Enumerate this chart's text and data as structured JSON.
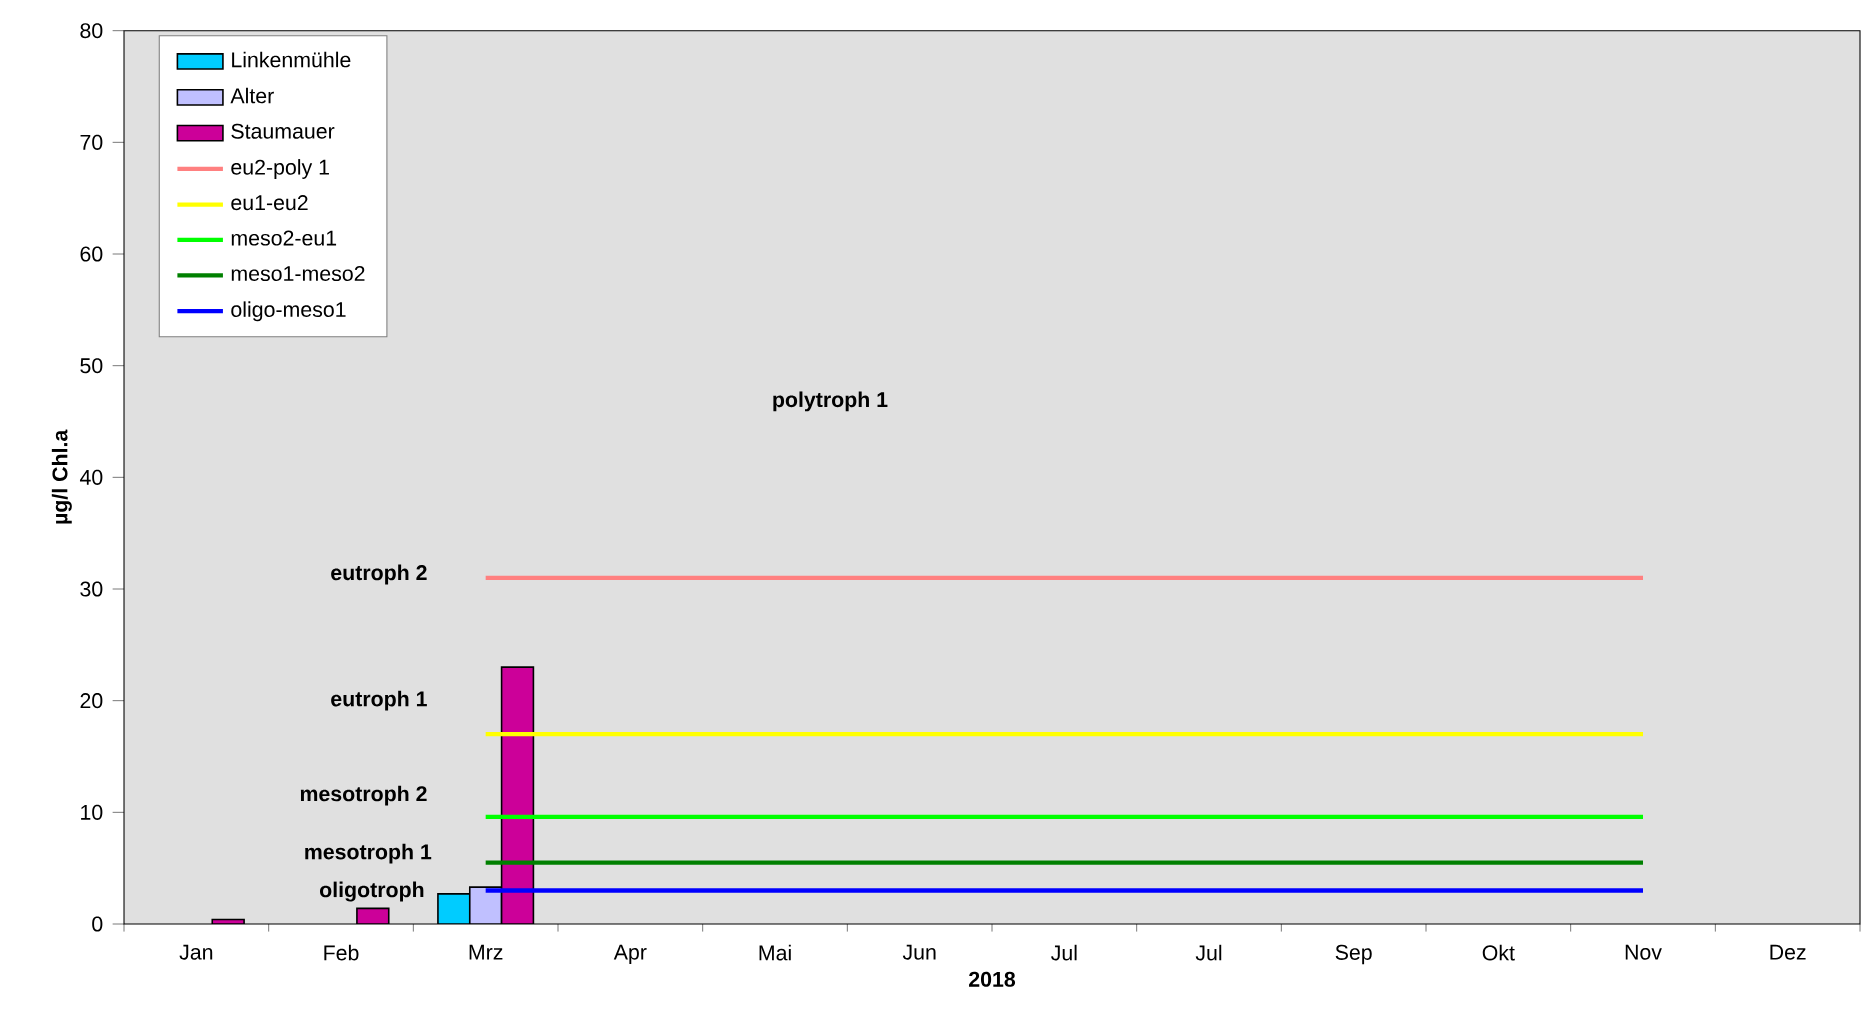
{
  "chart_data": {
    "type": "bar",
    "xlabel": "2018",
    "ylabel": "µg/l Chl.a",
    "categories": [
      "Jan",
      "Feb",
      "Mrz",
      "Apr",
      "Mai",
      "Jun",
      "Jul",
      "Jul",
      "Sep",
      "Okt",
      "Nov",
      "Dez"
    ],
    "series": [
      {
        "name": "Linkenmühle",
        "color": "#00ccff",
        "values": [
          null,
          null,
          2.7,
          null,
          null,
          null,
          null,
          null,
          null,
          null,
          null,
          null
        ]
      },
      {
        "name": "Alter",
        "color": "#c0c0ff",
        "values": [
          null,
          null,
          3.3,
          null,
          null,
          null,
          null,
          null,
          null,
          null,
          null,
          null
        ]
      },
      {
        "name": "Staumauer",
        "color": "#cc0099",
        "values": [
          0.4,
          1.4,
          23,
          null,
          null,
          null,
          null,
          null,
          null,
          null,
          null,
          null
        ]
      },
      {
        "name": "eu2-poly 1",
        "type": "line",
        "color": "#ff8080",
        "values": [
          null,
          null,
          31,
          31,
          31,
          31,
          31,
          31,
          31,
          31,
          31,
          null
        ]
      },
      {
        "name": "eu1-eu2",
        "type": "line",
        "color": "#ffff00",
        "values": [
          null,
          null,
          17,
          17,
          17,
          17,
          17,
          17,
          17,
          17,
          17,
          null
        ]
      },
      {
        "name": "meso2-eu1",
        "type": "line",
        "color": "#00ff00",
        "values": [
          null,
          null,
          9.6,
          9.6,
          9.6,
          9.6,
          9.6,
          9.6,
          9.6,
          9.6,
          9.6,
          null
        ]
      },
      {
        "name": "meso1-meso2",
        "type": "line",
        "color": "#008000",
        "values": [
          null,
          null,
          5.5,
          5.5,
          5.5,
          5.5,
          5.5,
          5.5,
          5.5,
          5.5,
          5.5,
          null
        ]
      },
      {
        "name": "oligo-meso1",
        "type": "line",
        "color": "#0000ff",
        "values": [
          null,
          null,
          3,
          3,
          3,
          3,
          3,
          3,
          3,
          3,
          3,
          null
        ]
      }
    ],
    "ylim": [
      0,
      80
    ],
    "yticks": [
      0,
      10,
      20,
      30,
      40,
      50,
      60,
      70,
      80
    ],
    "legend": "top left",
    "marker": "none",
    "line_style": "solid",
    "annotations": [
      "polytroph 1",
      "eutroph 2",
      "eutroph 1",
      "mesotroph 2",
      "mesotroph 1",
      "oligotroph"
    ]
  }
}
